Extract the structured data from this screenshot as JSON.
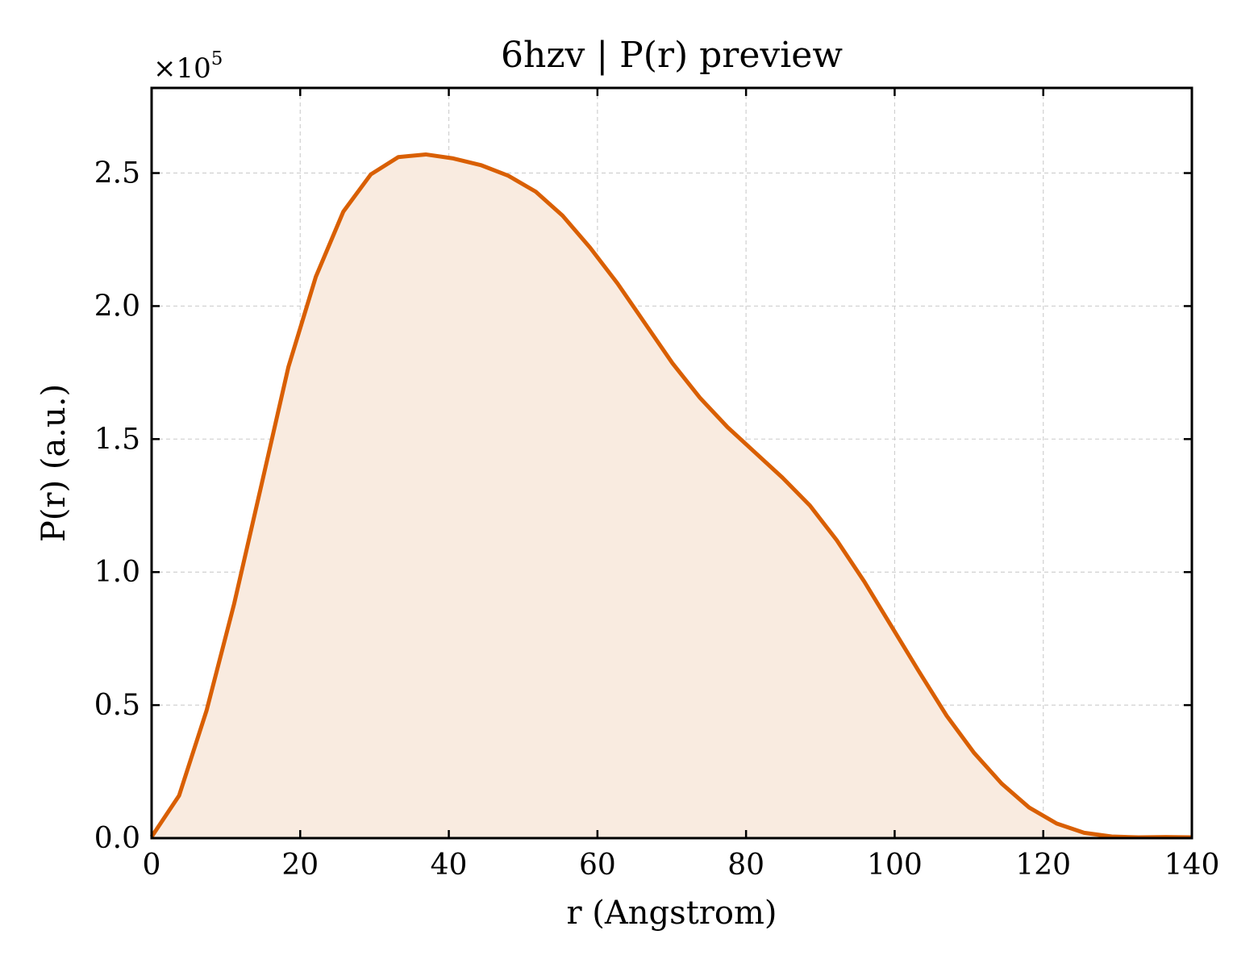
{
  "chart_data": {
    "type": "area",
    "title": "6hzv | P(r) preview",
    "xlabel": "r (Angstrom)",
    "ylabel": "P(r) (a.u.)",
    "y_offset_label": "×10",
    "y_offset_exponent": "5",
    "xlim": [
      0,
      140
    ],
    "ylim": [
      0,
      2.82
    ],
    "y_scale_factor": 100000,
    "x_ticks": [
      0,
      20,
      40,
      60,
      80,
      100,
      120,
      140
    ],
    "y_ticks": [
      0.0,
      0.5,
      1.0,
      1.5,
      2.0,
      2.5
    ],
    "x_tick_labels": [
      "0",
      "20",
      "40",
      "60",
      "80",
      "100",
      "120",
      "140"
    ],
    "y_tick_labels": [
      "0.0",
      "0.5",
      "1.0",
      "1.5",
      "2.0",
      "2.5"
    ],
    "grid": true,
    "colors": {
      "line": "#d95f02",
      "fill": "#f9ebe0",
      "grid": "#d0d0d0"
    },
    "series": [
      {
        "x": [
          0,
          3.7,
          7.4,
          11.1,
          14.8,
          18.4,
          22.1,
          25.8,
          29.5,
          33.2,
          36.9,
          40.6,
          44.3,
          48.0,
          51.7,
          55.3,
          59.0,
          62.7,
          66.4,
          70.1,
          73.8,
          77.5,
          81.2,
          84.9,
          88.6,
          92.2,
          95.9,
          99.6,
          103.3,
          107.0,
          110.7,
          114.4,
          118.1,
          121.8,
          125.5,
          129.2,
          132.8,
          136.5,
          140
        ],
        "y": [
          0.005,
          0.16,
          0.48,
          0.88,
          1.33,
          1.77,
          2.11,
          2.355,
          2.495,
          2.56,
          2.57,
          2.555,
          2.53,
          2.49,
          2.43,
          2.34,
          2.22,
          2.085,
          1.935,
          1.785,
          1.655,
          1.545,
          1.45,
          1.355,
          1.25,
          1.12,
          0.965,
          0.795,
          0.625,
          0.46,
          0.32,
          0.205,
          0.115,
          0.055,
          0.02,
          0.006,
          0.003,
          0.004,
          0.003
        ]
      }
    ]
  }
}
